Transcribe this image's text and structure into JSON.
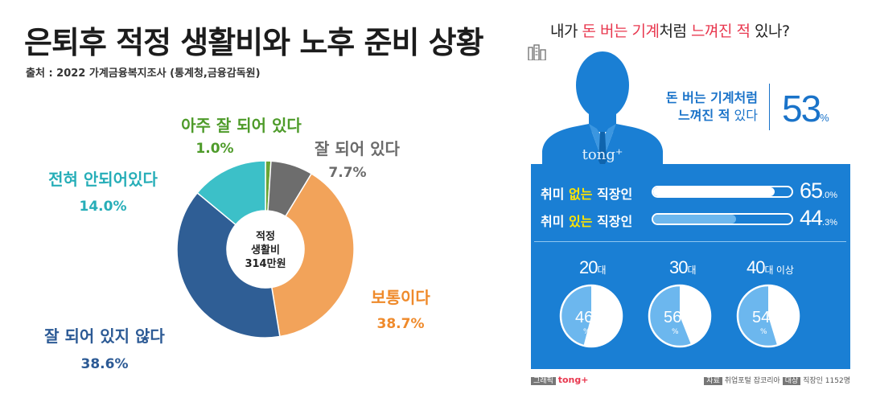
{
  "left": {
    "title": "은퇴후 적정 생활비와 노후 준비 상황",
    "source": "출처 : 2022 가계금융복지조사 (통계청,금융감독원)",
    "center_line1": "적정",
    "center_line2": "생활비",
    "center_line3": "314만원"
  },
  "right": {
    "title_part1": "내가 ",
    "title_hl1": "돈 버는 기계",
    "title_part2": "처럼 ",
    "title_hl2": "느껴진 적",
    "title_part3": " 있나?",
    "watermark": "tong+",
    "stat_label_line1": "돈 버는 기계처럼",
    "stat_label_line2_bold": "느껴진 적",
    "stat_label_line2_rest": " 있다",
    "stat_value": "53",
    "stat_unit": "%",
    "bar1_prefix": "취미 ",
    "bar1_hl": "없는",
    "bar1_suffix": " 직장인",
    "bar1_int": "65",
    "bar1_dec": ".0",
    "bar1_unit": "%",
    "bar2_prefix": "취미 ",
    "bar2_hl": "있는",
    "bar2_suffix": " 직장인",
    "bar2_int": "44",
    "bar2_dec": ".3",
    "bar2_unit": "%",
    "age1_num": "20",
    "age1_unit": "대",
    "age1_int": "46",
    "age1_dec": ".0",
    "age2_num": "30",
    "age2_unit": "대",
    "age2_int": "56",
    "age2_dec": ".0",
    "age3_num": "40",
    "age3_unit": "대 이상",
    "age3_int": "54",
    "age3_dec": ".7",
    "pie_unit": "%",
    "footer_graphic_tag": "그래픽",
    "footer_graphic_brand": "tong+",
    "footer_source_tag": "자료",
    "footer_source_text": " 취업포털 잡코리아 ",
    "footer_target_tag": "대상",
    "footer_target_text": " 직장인 1152명"
  },
  "colors": {
    "accent_red": "#e8384f",
    "accent_blue": "#1a7fd4",
    "highlight_yellow": "#ffe400"
  },
  "chart_data": [
    {
      "type": "pie",
      "title": "은퇴후 적정 생활비와 노후 준비 상황",
      "subtitle": "출처 : 2022 가계금융복지조사 (통계청,금융감독원)",
      "center_text": "적정 생활비 314만원",
      "categories": [
        "아주 잘 되어 있다",
        "잘 되어 있다",
        "보통이다",
        "잘 되어 있지 않다",
        "전혀 안되어있다"
      ],
      "values": [
        1.0,
        7.7,
        38.7,
        38.6,
        14.0
      ],
      "value_labels": [
        "1.0%",
        "7.7%",
        "38.7%",
        "38.6%",
        "14.0%"
      ],
      "colors": [
        "#6aa536",
        "#6d6d6d",
        "#f2a35a",
        "#2f5e95",
        "#3cc0c8"
      ],
      "label_colors": [
        "#4e9b2a",
        "#6b6b6b",
        "#ef8a2b",
        "#2c5a95",
        "#27aeb8"
      ]
    },
    {
      "type": "bar",
      "title": "내가 돈 버는 기계처럼 느껴진 적 있나?",
      "overall_value": 53,
      "categories": [
        "취미 없는 직장인",
        "취미 있는 직장인"
      ],
      "values": [
        65.0,
        44.3
      ],
      "unit": "%",
      "xlim": [
        0,
        100
      ]
    },
    {
      "type": "pie",
      "categories": [
        "20대",
        "30대",
        "40대 이상"
      ],
      "values": [
        46.0,
        56.0,
        54.7
      ],
      "unit": "%"
    }
  ]
}
